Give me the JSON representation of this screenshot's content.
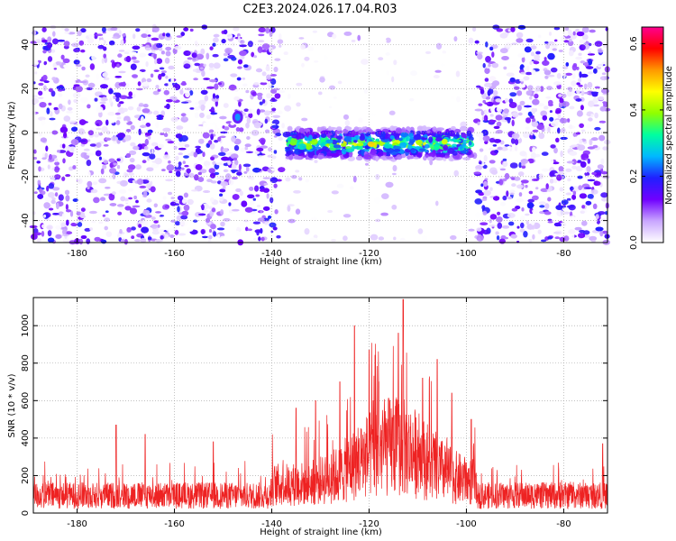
{
  "title": "C2E3.2024.026.17.04.R03",
  "chart_data": [
    {
      "type": "heatmap",
      "xlabel": "Height of straight line (km)",
      "ylabel": "Frequency (Hz)",
      "xlim": [
        -189,
        -71
      ],
      "ylim": [
        -50,
        48
      ],
      "xticks": [
        -180,
        -160,
        -140,
        -120,
        -100,
        -80
      ],
      "yticks": [
        -40,
        -20,
        0,
        20,
        40
      ],
      "grid": true,
      "colorbar": {
        "label": "Normalized spectral amplitude",
        "range": [
          0,
          0.65
        ],
        "ticks": [
          0,
          0.2,
          0.4,
          0.6
        ],
        "tick_labels": [
          "0.0",
          "0.2",
          "0.4",
          "0.6"
        ],
        "colors": [
          "#ffffff",
          "#c9a6ff",
          "#7000ff",
          "#2020ff",
          "#00b8ff",
          "#00ffa0",
          "#90ff00",
          "#ffff00",
          "#ff9900",
          "#ff0000",
          "#ff0090"
        ]
      },
      "features": {
        "noise_regions_x": [
          [
            -189,
            -138
          ],
          [
            -98,
            -71
          ]
        ],
        "quiet_region_x": [
          -138,
          -98
        ],
        "signal_band": {
          "x_range": [
            -137,
            -99
          ],
          "frequency_center": -5,
          "frequency_halfwidth": 7,
          "peak_amplitude": 0.45
        },
        "isolated_blob": {
          "x": -147,
          "frequency": 7,
          "amplitude": 0.25
        }
      }
    },
    {
      "type": "line",
      "xlabel": "Height of straight line (km)",
      "ylabel": "SNR (10 * v/v)",
      "xlim": [
        -189,
        -71
      ],
      "ylim": [
        0,
        1150
      ],
      "xticks": [
        -180,
        -160,
        -140,
        -120,
        -100,
        -80
      ],
      "yticks": [
        0,
        200,
        400,
        600,
        800,
        1000
      ],
      "grid": true,
      "line_color": "#ee2222",
      "baseline_level": 110,
      "peaks": [
        {
          "x": -172,
          "y": 470
        },
        {
          "x": -166,
          "y": 420
        },
        {
          "x": -152,
          "y": 380
        },
        {
          "x": -135,
          "y": 560
        },
        {
          "x": -131,
          "y": 600
        },
        {
          "x": -126,
          "y": 700
        },
        {
          "x": -123,
          "y": 1000
        },
        {
          "x": -120,
          "y": 870
        },
        {
          "x": -118,
          "y": 700
        },
        {
          "x": -114,
          "y": 960
        },
        {
          "x": -113,
          "y": 1140
        },
        {
          "x": -109,
          "y": 720
        },
        {
          "x": -106,
          "y": 820
        },
        {
          "x": -103,
          "y": 640
        },
        {
          "x": -99,
          "y": 500
        },
        {
          "x": -72,
          "y": 370
        }
      ]
    }
  ]
}
